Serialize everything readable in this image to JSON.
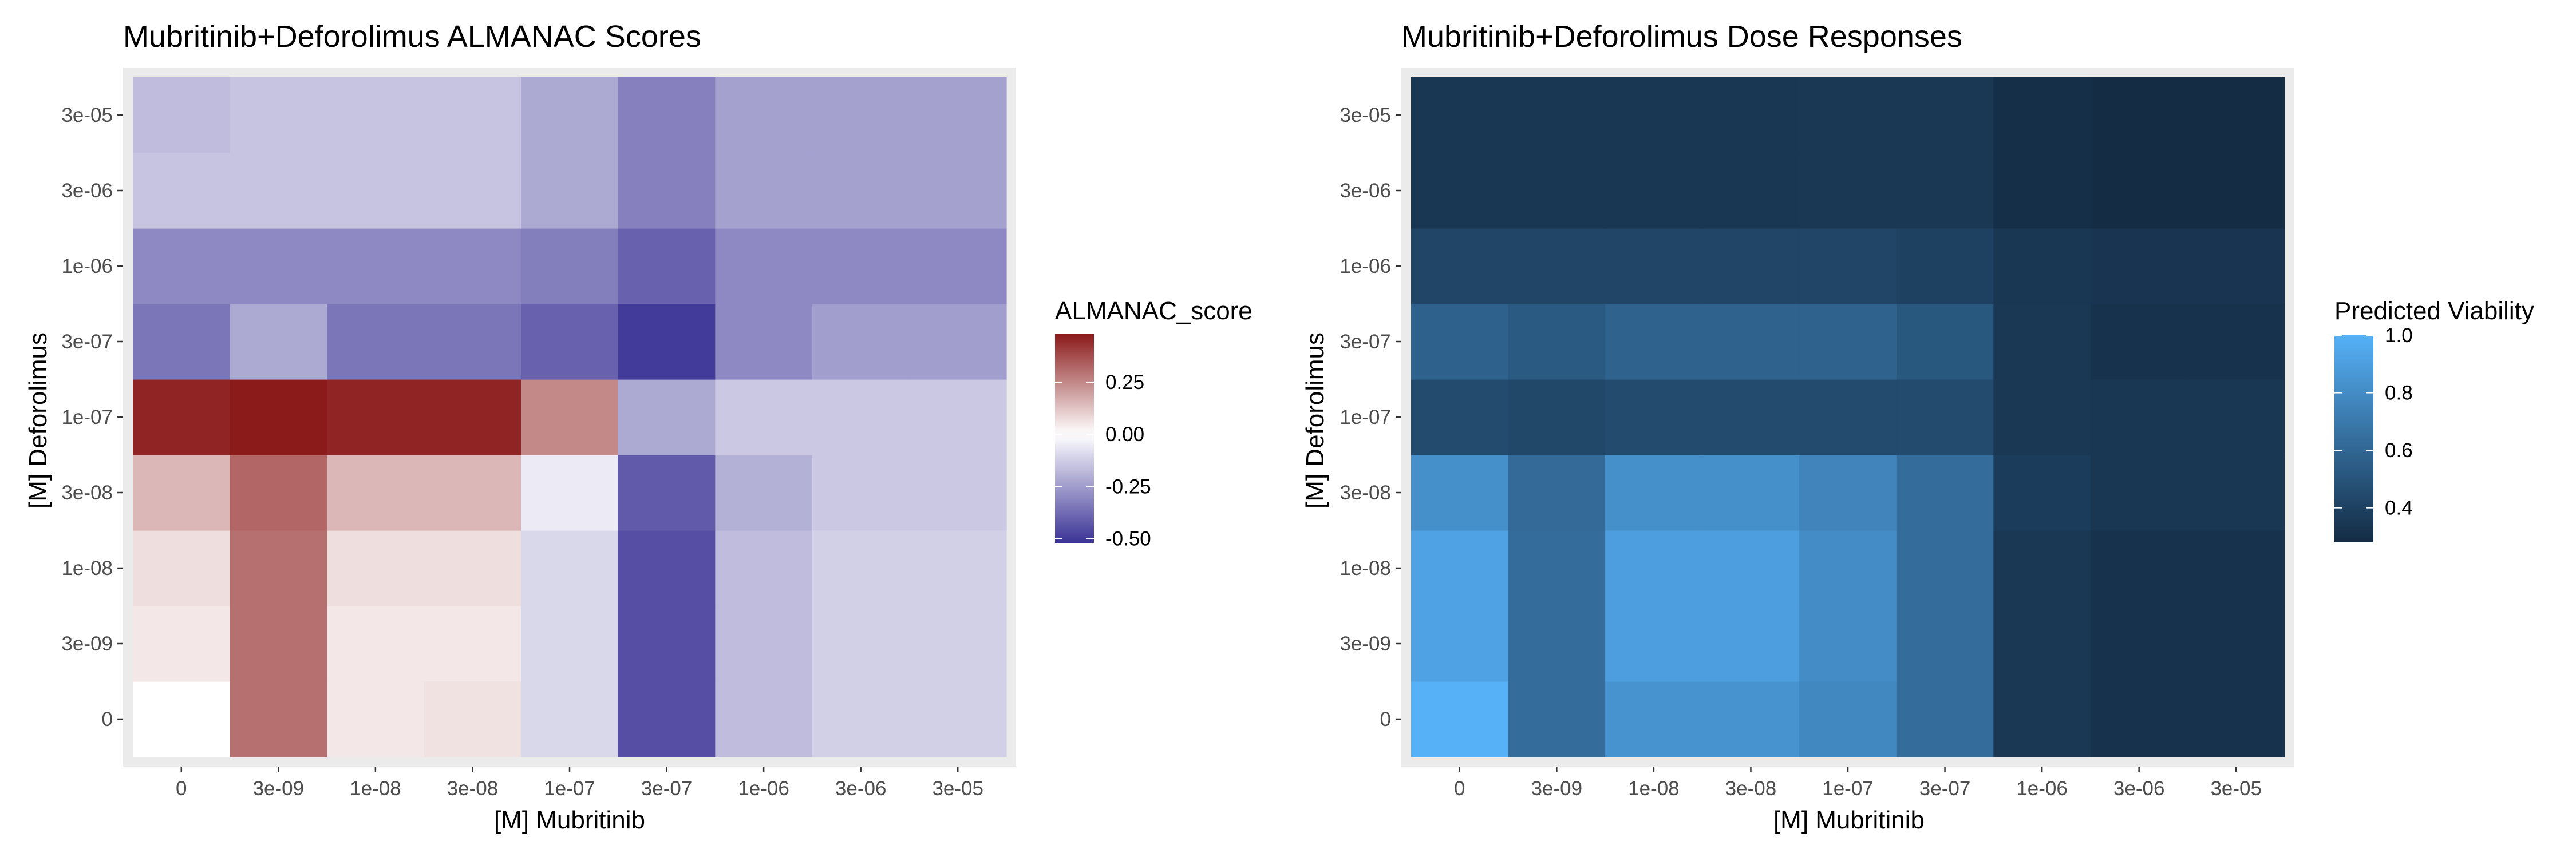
{
  "chart_data": [
    {
      "type": "heatmap",
      "title": "Mubritinib+Deforolimus ALMANAC Scores",
      "xlabel": "[M] Mubritinib",
      "ylabel": "[M] Deforolimus",
      "x_categories": [
        "0",
        "3e-09",
        "1e-08",
        "3e-08",
        "1e-07",
        "3e-07",
        "1e-06",
        "3e-06",
        "3e-05"
      ],
      "y_categories": [
        "0",
        "3e-09",
        "1e-08",
        "3e-08",
        "1e-07",
        "3e-07",
        "1e-06",
        "3e-06",
        "3e-05"
      ],
      "values": [
        [
          0.0,
          0.3,
          0.05,
          0.06,
          -0.1,
          -0.45,
          -0.17,
          -0.12,
          -0.12
        ],
        [
          0.05,
          0.3,
          0.05,
          0.05,
          -0.1,
          -0.45,
          -0.17,
          -0.12,
          -0.12
        ],
        [
          0.07,
          0.3,
          0.07,
          0.07,
          -0.1,
          -0.45,
          -0.17,
          -0.12,
          -0.12
        ],
        [
          0.15,
          0.32,
          0.15,
          0.15,
          -0.05,
          -0.42,
          -0.2,
          -0.14,
          -0.14
        ],
        [
          0.46,
          0.48,
          0.46,
          0.46,
          0.25,
          -0.22,
          -0.14,
          -0.14,
          -0.14
        ],
        [
          -0.35,
          -0.22,
          -0.35,
          -0.35,
          -0.4,
          -0.5,
          -0.3,
          -0.25,
          -0.25
        ],
        [
          -0.3,
          -0.3,
          -0.3,
          -0.3,
          -0.33,
          -0.4,
          -0.3,
          -0.3,
          -0.3
        ],
        [
          -0.15,
          -0.15,
          -0.15,
          -0.15,
          -0.22,
          -0.32,
          -0.24,
          -0.24,
          -0.24
        ],
        [
          -0.17,
          -0.15,
          -0.15,
          -0.15,
          -0.22,
          -0.32,
          -0.24,
          -0.24,
          -0.24
        ]
      ],
      "legend": {
        "title": "ALMANAC_score",
        "range": [
          -0.52,
          0.48
        ],
        "ticks": [
          0.25,
          0.0,
          -0.25,
          -0.5
        ],
        "tick_labels": [
          "0.25",
          "0.00",
          "-0.25",
          "-0.50"
        ],
        "colors": {
          "low": "#3b3396",
          "mid": "#ffffff",
          "high": "#8b1a1a"
        }
      },
      "grid": true
    },
    {
      "type": "heatmap",
      "title": "Mubritinib+Deforolimus Dose Responses",
      "xlabel": "[M] Mubritinib",
      "ylabel": "[M] Deforolimus",
      "x_categories": [
        "0",
        "3e-09",
        "1e-08",
        "3e-08",
        "1e-07",
        "3e-07",
        "1e-06",
        "3e-06",
        "3e-05"
      ],
      "y_categories": [
        "0",
        "3e-09",
        "1e-08",
        "3e-08",
        "1e-07",
        "3e-07",
        "1e-06",
        "3e-06",
        "3e-05"
      ],
      "values": [
        [
          1.0,
          0.63,
          0.84,
          0.84,
          0.78,
          0.63,
          0.35,
          0.32,
          0.32
        ],
        [
          0.92,
          0.63,
          0.9,
          0.9,
          0.8,
          0.63,
          0.35,
          0.32,
          0.32
        ],
        [
          0.92,
          0.63,
          0.9,
          0.9,
          0.8,
          0.63,
          0.35,
          0.32,
          0.32
        ],
        [
          0.82,
          0.62,
          0.82,
          0.82,
          0.76,
          0.63,
          0.37,
          0.34,
          0.34
        ],
        [
          0.45,
          0.43,
          0.45,
          0.45,
          0.45,
          0.45,
          0.35,
          0.34,
          0.34
        ],
        [
          0.57,
          0.53,
          0.58,
          0.58,
          0.58,
          0.52,
          0.35,
          0.32,
          0.32
        ],
        [
          0.42,
          0.42,
          0.42,
          0.42,
          0.42,
          0.4,
          0.34,
          0.33,
          0.33
        ],
        [
          0.34,
          0.34,
          0.34,
          0.34,
          0.35,
          0.35,
          0.3,
          0.29,
          0.29
        ],
        [
          0.34,
          0.34,
          0.34,
          0.34,
          0.35,
          0.35,
          0.3,
          0.29,
          0.29
        ]
      ],
      "legend": {
        "title": "Predicted Viability",
        "range": [
          0.28,
          1.0
        ],
        "ticks": [
          1.0,
          0.8,
          0.6,
          0.4
        ],
        "tick_labels": [
          "1.0",
          "0.8",
          "0.6",
          "0.4"
        ],
        "colors": {
          "low": "#132b43",
          "high": "#56b1f7"
        }
      },
      "grid": true
    }
  ]
}
